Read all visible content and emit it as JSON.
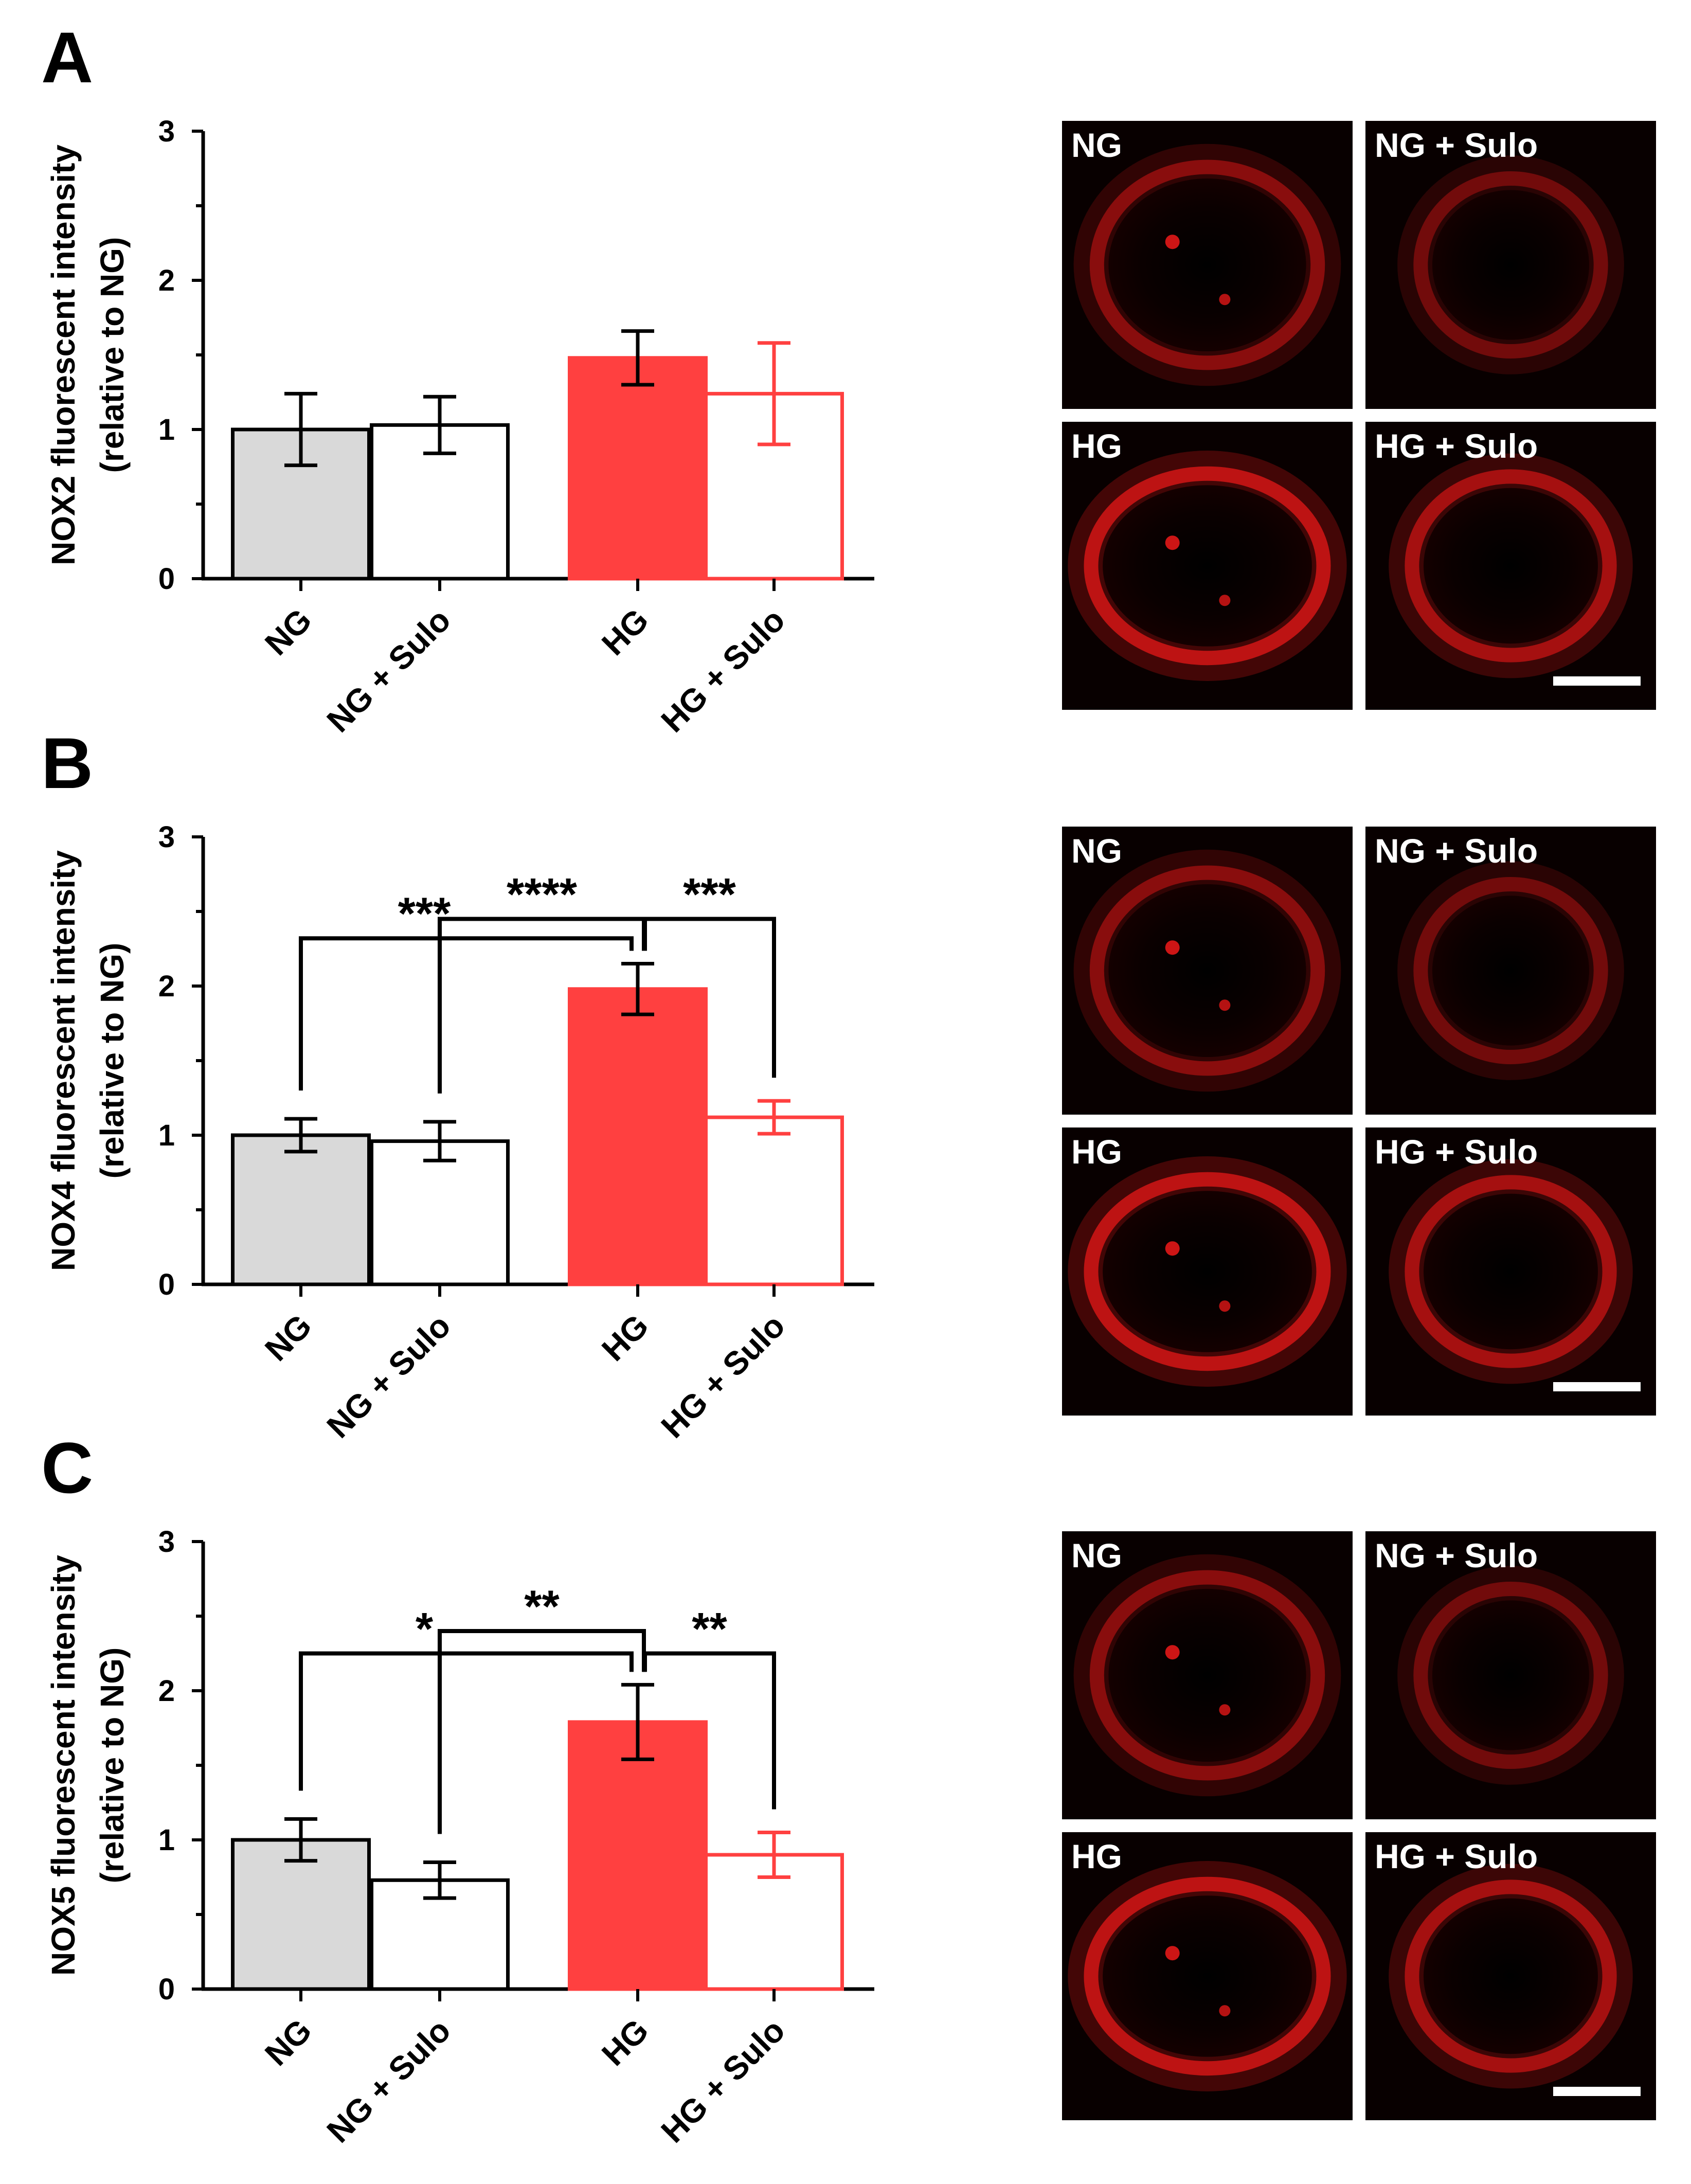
{
  "colors": {
    "ng_fill": "#d9d9d9",
    "hg_red": "#ff4040",
    "axis": "#000000",
    "micrograph_bg": "#080000",
    "micrograph_signal": "#ff1a1a"
  },
  "chart_data": [
    {
      "panel": "A",
      "type": "bar",
      "ylabel_line1": "NOX2 fluorescent intensity",
      "ylabel_line2": "(relative to NG)",
      "categories": [
        "NG",
        "NG + Sulo",
        "HG",
        "HG + Sulo"
      ],
      "values": [
        1.0,
        1.03,
        1.48,
        1.24
      ],
      "errors": [
        0.24,
        0.19,
        0.18,
        0.34
      ],
      "ylim": [
        0,
        3
      ],
      "yticks": [
        "0",
        "1",
        "2",
        "3"
      ],
      "significance": [],
      "micrograph_labels": [
        "NG",
        "NG + Sulo",
        "HG",
        "HG + Sulo"
      ]
    },
    {
      "panel": "B",
      "type": "bar",
      "ylabel_line1": "NOX4 fluorescent intensity",
      "ylabel_line2": "(relative to NG)",
      "categories": [
        "NG",
        "NG + Sulo",
        "HG",
        "HG + Sulo"
      ],
      "values": [
        1.0,
        0.96,
        1.98,
        1.12
      ],
      "errors": [
        0.11,
        0.13,
        0.17,
        0.11
      ],
      "ylim": [
        0,
        3
      ],
      "yticks": [
        "0",
        "1",
        "2",
        "3"
      ],
      "significance": [
        {
          "from": 0,
          "to": 2,
          "label": "***",
          "level": 2.32
        },
        {
          "from": 1,
          "to": 2,
          "label": "****",
          "level": 2.45
        },
        {
          "from": 2,
          "to": 3,
          "label": "***",
          "level": 2.45
        }
      ],
      "micrograph_labels": [
        "NG",
        "NG + Sulo",
        "HG",
        "HG + Sulo"
      ]
    },
    {
      "panel": "C",
      "type": "bar",
      "ylabel_line1": "NOX5 fluorescent intensity",
      "ylabel_line2": "(relative to NG)",
      "categories": [
        "NG",
        "NG + Sulo",
        "HG",
        "HG + Sulo"
      ],
      "values": [
        1.0,
        0.73,
        1.79,
        0.9
      ],
      "errors": [
        0.14,
        0.12,
        0.25,
        0.15
      ],
      "ylim": [
        0,
        3
      ],
      "yticks": [
        "0",
        "1",
        "2",
        "3"
      ],
      "significance": [
        {
          "from": 0,
          "to": 2,
          "label": "*",
          "level": 2.25
        },
        {
          "from": 1,
          "to": 2,
          "label": "**",
          "level": 2.4
        },
        {
          "from": 2,
          "to": 3,
          "label": "**",
          "level": 2.25
        }
      ],
      "micrograph_labels": [
        "NG",
        "NG + Sulo",
        "HG",
        "HG + Sulo"
      ]
    }
  ]
}
